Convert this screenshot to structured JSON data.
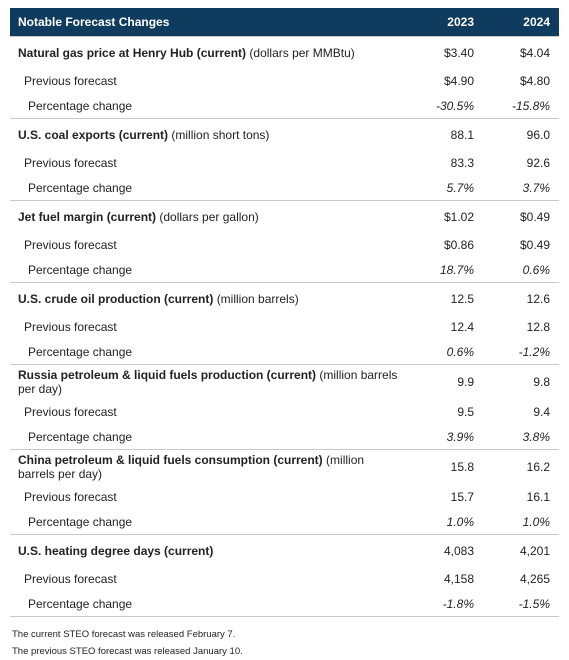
{
  "header": {
    "title": "Notable Forecast Changes",
    "columns": [
      "2023",
      "2024"
    ]
  },
  "groups": [
    {
      "title": "Natural gas price at Henry Hub (current)",
      "unit": "(dollars per MMBtu)",
      "current": [
        "$3.40",
        "$4.04"
      ],
      "previous_label": "Previous forecast",
      "previous": [
        "$4.90",
        "$4.80"
      ],
      "change_label": "Percentage change",
      "change": [
        "-30.5%",
        "-15.8%"
      ]
    },
    {
      "title": "U.S. coal exports (current)",
      "unit": "(million short tons)",
      "current": [
        "88.1",
        "96.0"
      ],
      "previous_label": "Previous forecast",
      "previous": [
        "83.3",
        "92.6"
      ],
      "change_label": "Percentage change",
      "change": [
        "5.7%",
        "3.7%"
      ]
    },
    {
      "title": "Jet fuel margin (current)",
      "unit": "(dollars per gallon)",
      "current": [
        "$1.02",
        "$0.49"
      ],
      "previous_label": "Previous forecast",
      "previous": [
        "$0.86",
        "$0.49"
      ],
      "change_label": "Percentage change",
      "change": [
        "18.7%",
        "0.6%"
      ]
    },
    {
      "title": "U.S. crude oil production (current)",
      "unit": "(million barrels)",
      "current": [
        "12.5",
        "12.6"
      ],
      "previous_label": "Previous forecast",
      "previous": [
        "12.4",
        "12.8"
      ],
      "change_label": "Percentage change",
      "change": [
        "0.6%",
        "-1.2%"
      ]
    },
    {
      "title": "Russia petroleum & liquid fuels production (current)",
      "unit": "(million barrels per day)",
      "current": [
        "9.9",
        "9.8"
      ],
      "previous_label": "Previous forecast",
      "previous": [
        "9.5",
        "9.4"
      ],
      "change_label": "Percentage change",
      "change": [
        "3.9%",
        "3.8%"
      ]
    },
    {
      "title": "China petroleum & liquid fuels consumption (current)",
      "unit": "(million barrels per day)",
      "current": [
        "15.8",
        "16.2"
      ],
      "previous_label": "Previous forecast",
      "previous": [
        "15.7",
        "16.1"
      ],
      "change_label": "Percentage change",
      "change": [
        "1.0%",
        "1.0%"
      ]
    },
    {
      "title": "U.S. heating degree days (current)",
      "current": [
        "4,083",
        "4,201"
      ],
      "previous_label": "Previous forecast",
      "previous": [
        "4,158",
        "4,265"
      ],
      "change_label": "Percentage change",
      "change": [
        "-1.8%",
        "-1.5%"
      ]
    }
  ],
  "footnotes": [
    "The current STEO forecast was released February 7.",
    "The previous STEO forecast was released January 10."
  ]
}
